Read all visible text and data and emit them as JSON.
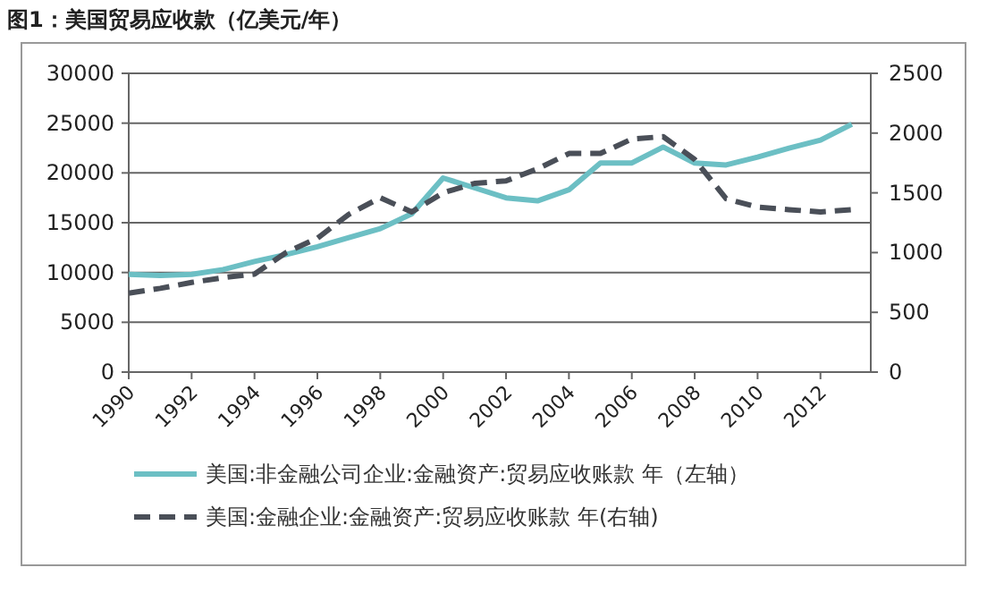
{
  "chart_data": {
    "type": "line",
    "title": "图1：美国贸易应收款（亿美元/年）",
    "x": [
      1990,
      1991,
      1992,
      1993,
      1994,
      1995,
      1996,
      1997,
      1998,
      1999,
      2000,
      2001,
      2002,
      2003,
      2004,
      2005,
      2006,
      2007,
      2008,
      2009,
      2010,
      2011,
      2012,
      2013
    ],
    "xlim": [
      1990,
      2013.6
    ],
    "xticks": [
      1990,
      1992,
      1994,
      1996,
      1998,
      2000,
      2002,
      2004,
      2006,
      2008,
      2010,
      2012
    ],
    "ylim": [
      0,
      30000
    ],
    "yticks": [
      0,
      5000,
      10000,
      15000,
      20000,
      25000,
      30000
    ],
    "y2lim": [
      0,
      2500
    ],
    "y2ticks": [
      0,
      500,
      1000,
      1500,
      2000,
      2500
    ],
    "grid": "y",
    "legend": "bottom",
    "marker": "none",
    "series": [
      {
        "name": "美国:非金融公司企业:金融资产:贸易应收账款 年（左轴）",
        "color": "#6cbfc4",
        "line_style": "solid",
        "values": [
          9800,
          9700,
          9800,
          10300,
          11100,
          11800,
          12600,
          13500,
          14400,
          15900,
          19500,
          18500,
          17500,
          17200,
          18300,
          21000,
          21000,
          22600,
          21000,
          20800,
          21600,
          22500,
          23300,
          24900
        ]
      },
      {
        "name": "美国:金融企业:金融资产:贸易应收账款 年(右轴)",
        "color": "#4a4f58",
        "line_style": "dashed",
        "axis": "y2",
        "values": [
          660,
          700,
          750,
          790,
          820,
          1000,
          1120,
          1320,
          1460,
          1340,
          1500,
          1580,
          1600,
          1700,
          1830,
          1830,
          1950,
          1970,
          1780,
          1450,
          1380,
          1360,
          1340,
          1360
        ]
      }
    ]
  }
}
